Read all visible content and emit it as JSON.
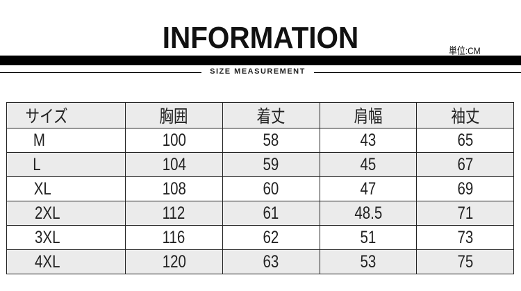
{
  "header": {
    "title": "INFORMATION",
    "unit": "単位:CM",
    "subtitle": "SIZE MEASUREMENT"
  },
  "table": {
    "columns": [
      "サイズ",
      "胸囲",
      "着丈",
      "肩幅",
      "袖丈"
    ],
    "rows": [
      [
        "M",
        "100",
        "58",
        "43",
        "65"
      ],
      [
        "L",
        "104",
        "59",
        "45",
        "67"
      ],
      [
        "XL",
        "108",
        "60",
        "47",
        "69"
      ],
      [
        "2XL",
        "112",
        "61",
        "48.5",
        "71"
      ],
      [
        "3XL",
        "116",
        "62",
        "51",
        "73"
      ],
      [
        "4XL",
        "120",
        "63",
        "53",
        "75"
      ]
    ]
  }
}
